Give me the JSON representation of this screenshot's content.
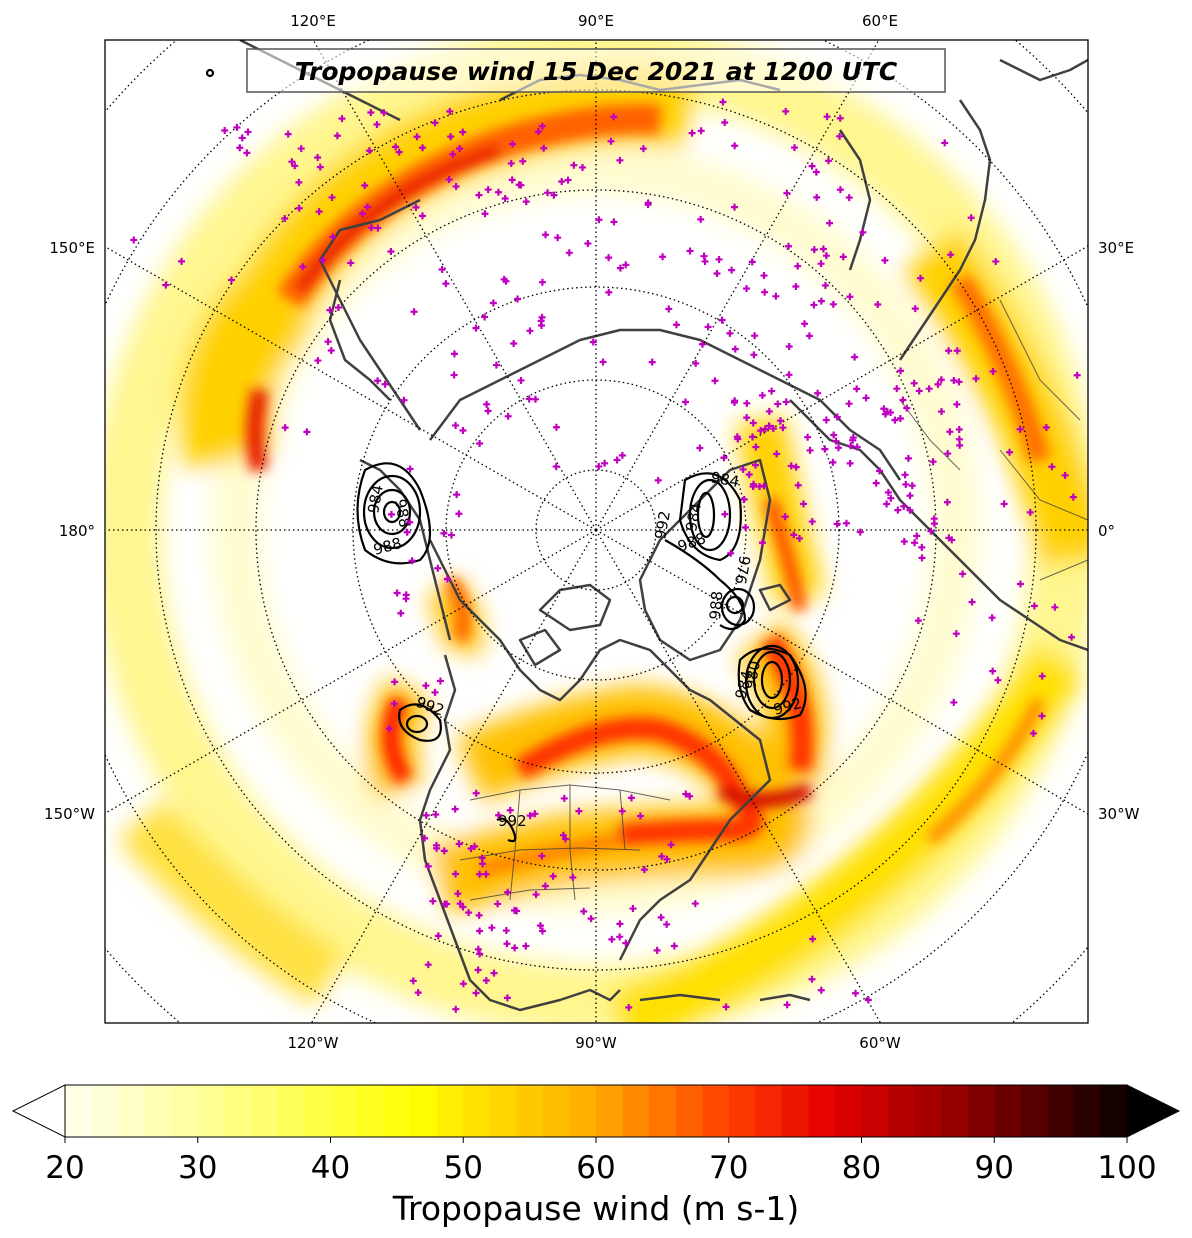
{
  "title": "Tropopause wind 15 Dec 2021 at 1200 UTC",
  "top_lon_labels": [
    "120°E",
    "90°E",
    "60°E"
  ],
  "bottom_lon_labels": [
    "120°W",
    "90°W",
    "60°W"
  ],
  "left_lon_labels": [
    "150°E",
    "180°",
    "150°W"
  ],
  "right_lon_labels": [
    "30°E",
    "0°",
    "30°W"
  ],
  "colorbar": {
    "label": "Tropopause wind (m s-1)",
    "min": 20,
    "max": 100,
    "ticks": [
      "20",
      "30",
      "40",
      "50",
      "60",
      "70",
      "80",
      "90",
      "100"
    ],
    "extend": "both",
    "colormap": "hot_r"
  },
  "contour_labels": [
    "984",
    "988",
    "984",
    "988",
    "992",
    "984",
    "988",
    "976",
    "980",
    "984",
    "992",
    "988",
    "992",
    "992"
  ],
  "marker_color": "#c000c0",
  "coastline_color": "#404040"
}
